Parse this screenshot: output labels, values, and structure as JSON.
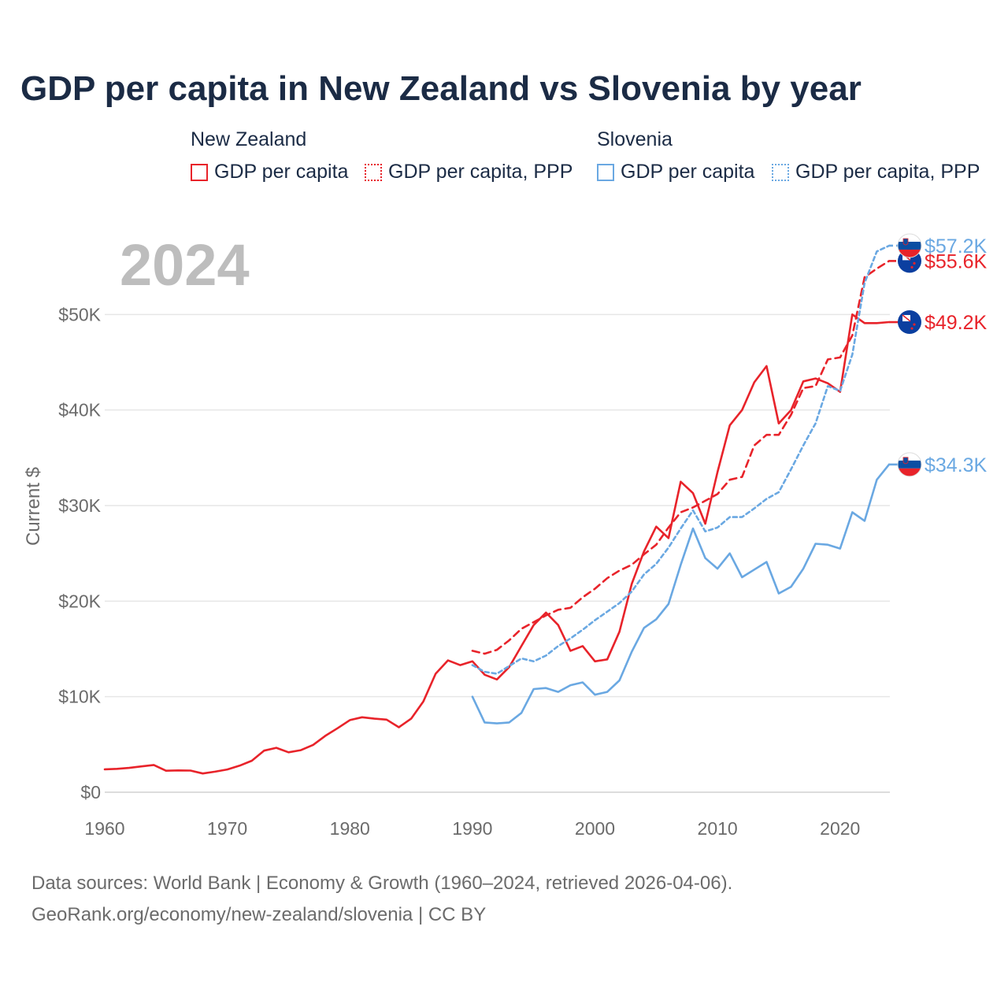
{
  "chart_data": {
    "type": "line",
    "title": "GDP per capita in New Zealand vs Slovenia by year",
    "big_year_label": "2024",
    "ylabel": "Current $",
    "xlabel": "",
    "xlim": [
      1960,
      2024
    ],
    "ylim": [
      0,
      60000
    ],
    "grid": true,
    "x_ticks": [
      1960,
      1970,
      1980,
      1990,
      2000,
      2010,
      2020
    ],
    "x_tick_labels": [
      "1960",
      "1970",
      "1980",
      "1990",
      "2000",
      "2010",
      "2020"
    ],
    "y_ticks": [
      0,
      10000,
      20000,
      30000,
      40000,
      50000
    ],
    "y_tick_labels": [
      "$0",
      "$10K",
      "$20K",
      "$30K",
      "$40K",
      "$50K"
    ],
    "legend": {
      "groups": [
        {
          "country": "New Zealand",
          "items": [
            "GDP per capita",
            "GDP per capita, PPP"
          ]
        },
        {
          "country": "Slovenia",
          "items": [
            "GDP per capita",
            "GDP per capita, PPP"
          ]
        }
      ]
    },
    "series": [
      {
        "name": "New Zealand GDP per capita",
        "color": "#e8232a",
        "dash": "solid",
        "end_label": "$49.2K",
        "flag": "new-zealand",
        "x": [
          1960,
          1961,
          1962,
          1963,
          1964,
          1965,
          1966,
          1967,
          1968,
          1969,
          1970,
          1971,
          1972,
          1973,
          1974,
          1975,
          1976,
          1977,
          1978,
          1979,
          1980,
          1981,
          1982,
          1983,
          1984,
          1985,
          1986,
          1987,
          1988,
          1989,
          1990,
          1991,
          1992,
          1993,
          1994,
          1995,
          1996,
          1997,
          1998,
          1999,
          2000,
          2001,
          2002,
          2003,
          2004,
          2005,
          2006,
          2007,
          2008,
          2009,
          2010,
          2011,
          2012,
          2013,
          2014,
          2015,
          2016,
          2017,
          2018,
          2019,
          2020,
          2021,
          2022,
          2023,
          2024
        ],
        "values": [
          2400,
          2450,
          2550,
          2700,
          2850,
          2250,
          2280,
          2270,
          1960,
          2150,
          2380,
          2780,
          3300,
          4350,
          4650,
          4180,
          4400,
          4950,
          5900,
          6700,
          7550,
          7850,
          7700,
          7600,
          6800,
          7700,
          9500,
          12400,
          13800,
          13300,
          13700,
          12300,
          11800,
          13100,
          15300,
          17500,
          18800,
          17500,
          14800,
          15300,
          13700,
          13900,
          16800,
          21800,
          25200,
          27800,
          26600,
          32500,
          31300,
          28100,
          33500,
          38400,
          40000,
          42900,
          44600,
          38600,
          40000,
          43000,
          43300,
          42800,
          41900,
          50000,
          49100,
          49100,
          49200
        ]
      },
      {
        "name": "New Zealand GDP per capita, PPP",
        "color": "#e8232a",
        "dash": "dashed",
        "end_label": "$55.6K",
        "flag": "new-zealand",
        "x": [
          1990,
          1991,
          1992,
          1993,
          1994,
          1995,
          1996,
          1997,
          1998,
          1999,
          2000,
          2001,
          2002,
          2003,
          2004,
          2005,
          2006,
          2007,
          2008,
          2009,
          2010,
          2011,
          2012,
          2013,
          2014,
          2015,
          2016,
          2017,
          2018,
          2019,
          2020,
          2021,
          2022,
          2023,
          2024
        ],
        "values": [
          14800,
          14500,
          14900,
          15900,
          17100,
          17800,
          18500,
          19100,
          19300,
          20400,
          21300,
          22400,
          23200,
          23800,
          24900,
          25900,
          27700,
          29300,
          29800,
          30500,
          31200,
          32700,
          33000,
          36300,
          37400,
          37400,
          39500,
          42300,
          42500,
          45300,
          45500,
          47800,
          53900,
          54800,
          55600
        ]
      },
      {
        "name": "Slovenia GDP per capita",
        "color": "#6aa8e2",
        "dash": "solid",
        "end_label": "$34.3K",
        "flag": "slovenia",
        "x": [
          1990,
          1991,
          1992,
          1993,
          1994,
          1995,
          1996,
          1997,
          1998,
          1999,
          2000,
          2001,
          2002,
          2003,
          2004,
          2005,
          2006,
          2007,
          2008,
          2009,
          2010,
          2011,
          2012,
          2013,
          2014,
          2015,
          2016,
          2017,
          2018,
          2019,
          2020,
          2021,
          2022,
          2023,
          2024
        ],
        "values": [
          10000,
          7300,
          7200,
          7300,
          8300,
          10800,
          10900,
          10500,
          11200,
          11500,
          10200,
          10500,
          11700,
          14700,
          17200,
          18100,
          19700,
          23800,
          27600,
          24500,
          23400,
          25000,
          22500,
          23300,
          24100,
          20800,
          21500,
          23400,
          26000,
          25900,
          25500,
          29300,
          28400,
          32700,
          34300
        ]
      },
      {
        "name": "Slovenia GDP per capita, PPP",
        "color": "#6aa8e2",
        "dash": "dotted",
        "end_label": "$57.2K",
        "flag": "slovenia",
        "x": [
          1990,
          1991,
          1992,
          1993,
          1994,
          1995,
          1996,
          1997,
          1998,
          1999,
          2000,
          2001,
          2002,
          2003,
          2004,
          2005,
          2006,
          2007,
          2008,
          2009,
          2010,
          2011,
          2012,
          2013,
          2014,
          2015,
          2016,
          2017,
          2018,
          2019,
          2020,
          2021,
          2022,
          2023,
          2024
        ],
        "values": [
          13300,
          12600,
          12400,
          13200,
          14000,
          13700,
          14300,
          15300,
          16100,
          17000,
          18000,
          18900,
          19800,
          21000,
          22800,
          23900,
          25600,
          27600,
          29500,
          27300,
          27700,
          28800,
          28800,
          29700,
          30700,
          31400,
          33800,
          36300,
          38600,
          42500,
          42000,
          45800,
          53300,
          56600,
          57200
        ]
      }
    ]
  },
  "legend_labels": {
    "nz": "New Zealand",
    "si": "Slovenia",
    "gdp": "GDP per capita",
    "ppp": "GDP per capita, PPP"
  },
  "footer": {
    "line1": "Data sources: World Bank | Economy & Growth (1960–2024, retrieved 2026-04-06).",
    "line2": "GeoRank.org/economy/new-zealand/slovenia | CC BY"
  },
  "colors": {
    "new_zealand": "#e8232a",
    "slovenia": "#6aa8e2",
    "title": "#1b2b45",
    "axis_text": "#6b6b6b",
    "year_watermark": "#bdbdbd",
    "grid": "#e6e6e6"
  }
}
